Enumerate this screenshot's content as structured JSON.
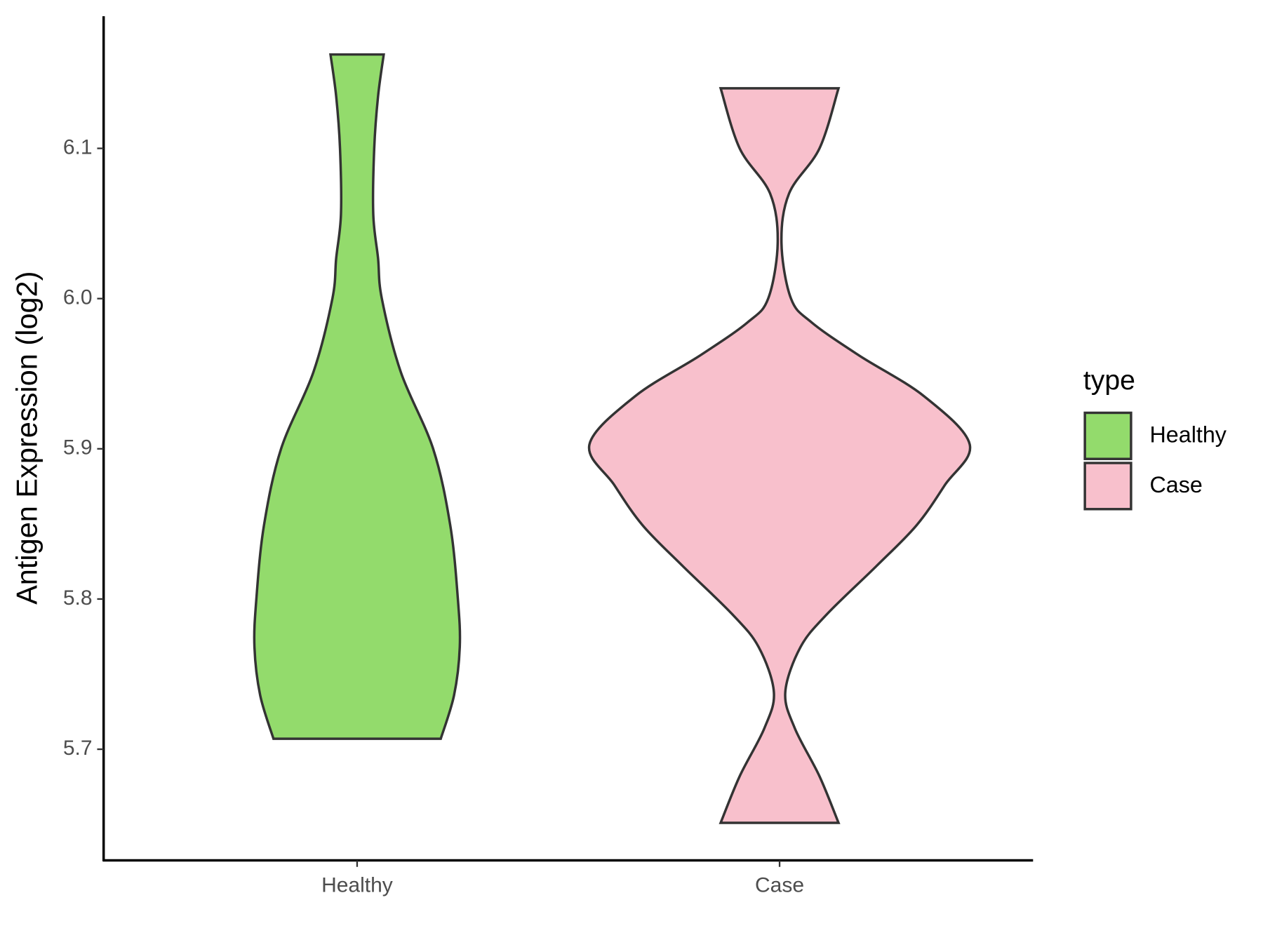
{
  "chart_data": {
    "type": "violin",
    "y_label": "Antigen Expression (log2)",
    "categories": [
      "Healthy",
      "Case"
    ],
    "legend_title": "type",
    "legend": "right",
    "series": [
      {
        "name": "Healthy",
        "color": "#93db6c",
        "y": [
          6.1625,
          6.1345,
          6.1,
          6.056,
          6.027,
          6.0,
          5.951,
          5.9,
          5.849,
          5.8,
          5.768,
          5.736,
          5.707
        ],
        "widths": [
          0.14,
          0.11,
          0.09,
          0.085,
          0.11,
          0.13,
          0.23,
          0.4,
          0.49,
          0.53,
          0.54,
          0.51,
          0.44
        ]
      },
      {
        "name": "Case",
        "color": "#f8c0cc",
        "y": [
          6.14,
          6.1,
          6.07,
          6.037,
          6.0,
          5.984,
          5.962,
          5.935,
          5.903,
          5.876,
          5.849,
          5.822,
          5.79,
          5.768,
          5.738,
          5.714,
          5.682,
          5.651
        ],
        "widths": [
          0.31,
          0.21,
          0.05,
          0.01,
          0.06,
          0.17,
          0.42,
          0.76,
          1.0,
          0.87,
          0.72,
          0.51,
          0.25,
          0.11,
          0.03,
          0.08,
          0.21,
          0.31
        ]
      }
    ],
    "ylim": [
      5.626,
      6.188
    ],
    "yticks": [
      5.7,
      5.8,
      5.9,
      {
        "value": 6,
        "label": "6.0"
      },
      6.1
    ]
  }
}
